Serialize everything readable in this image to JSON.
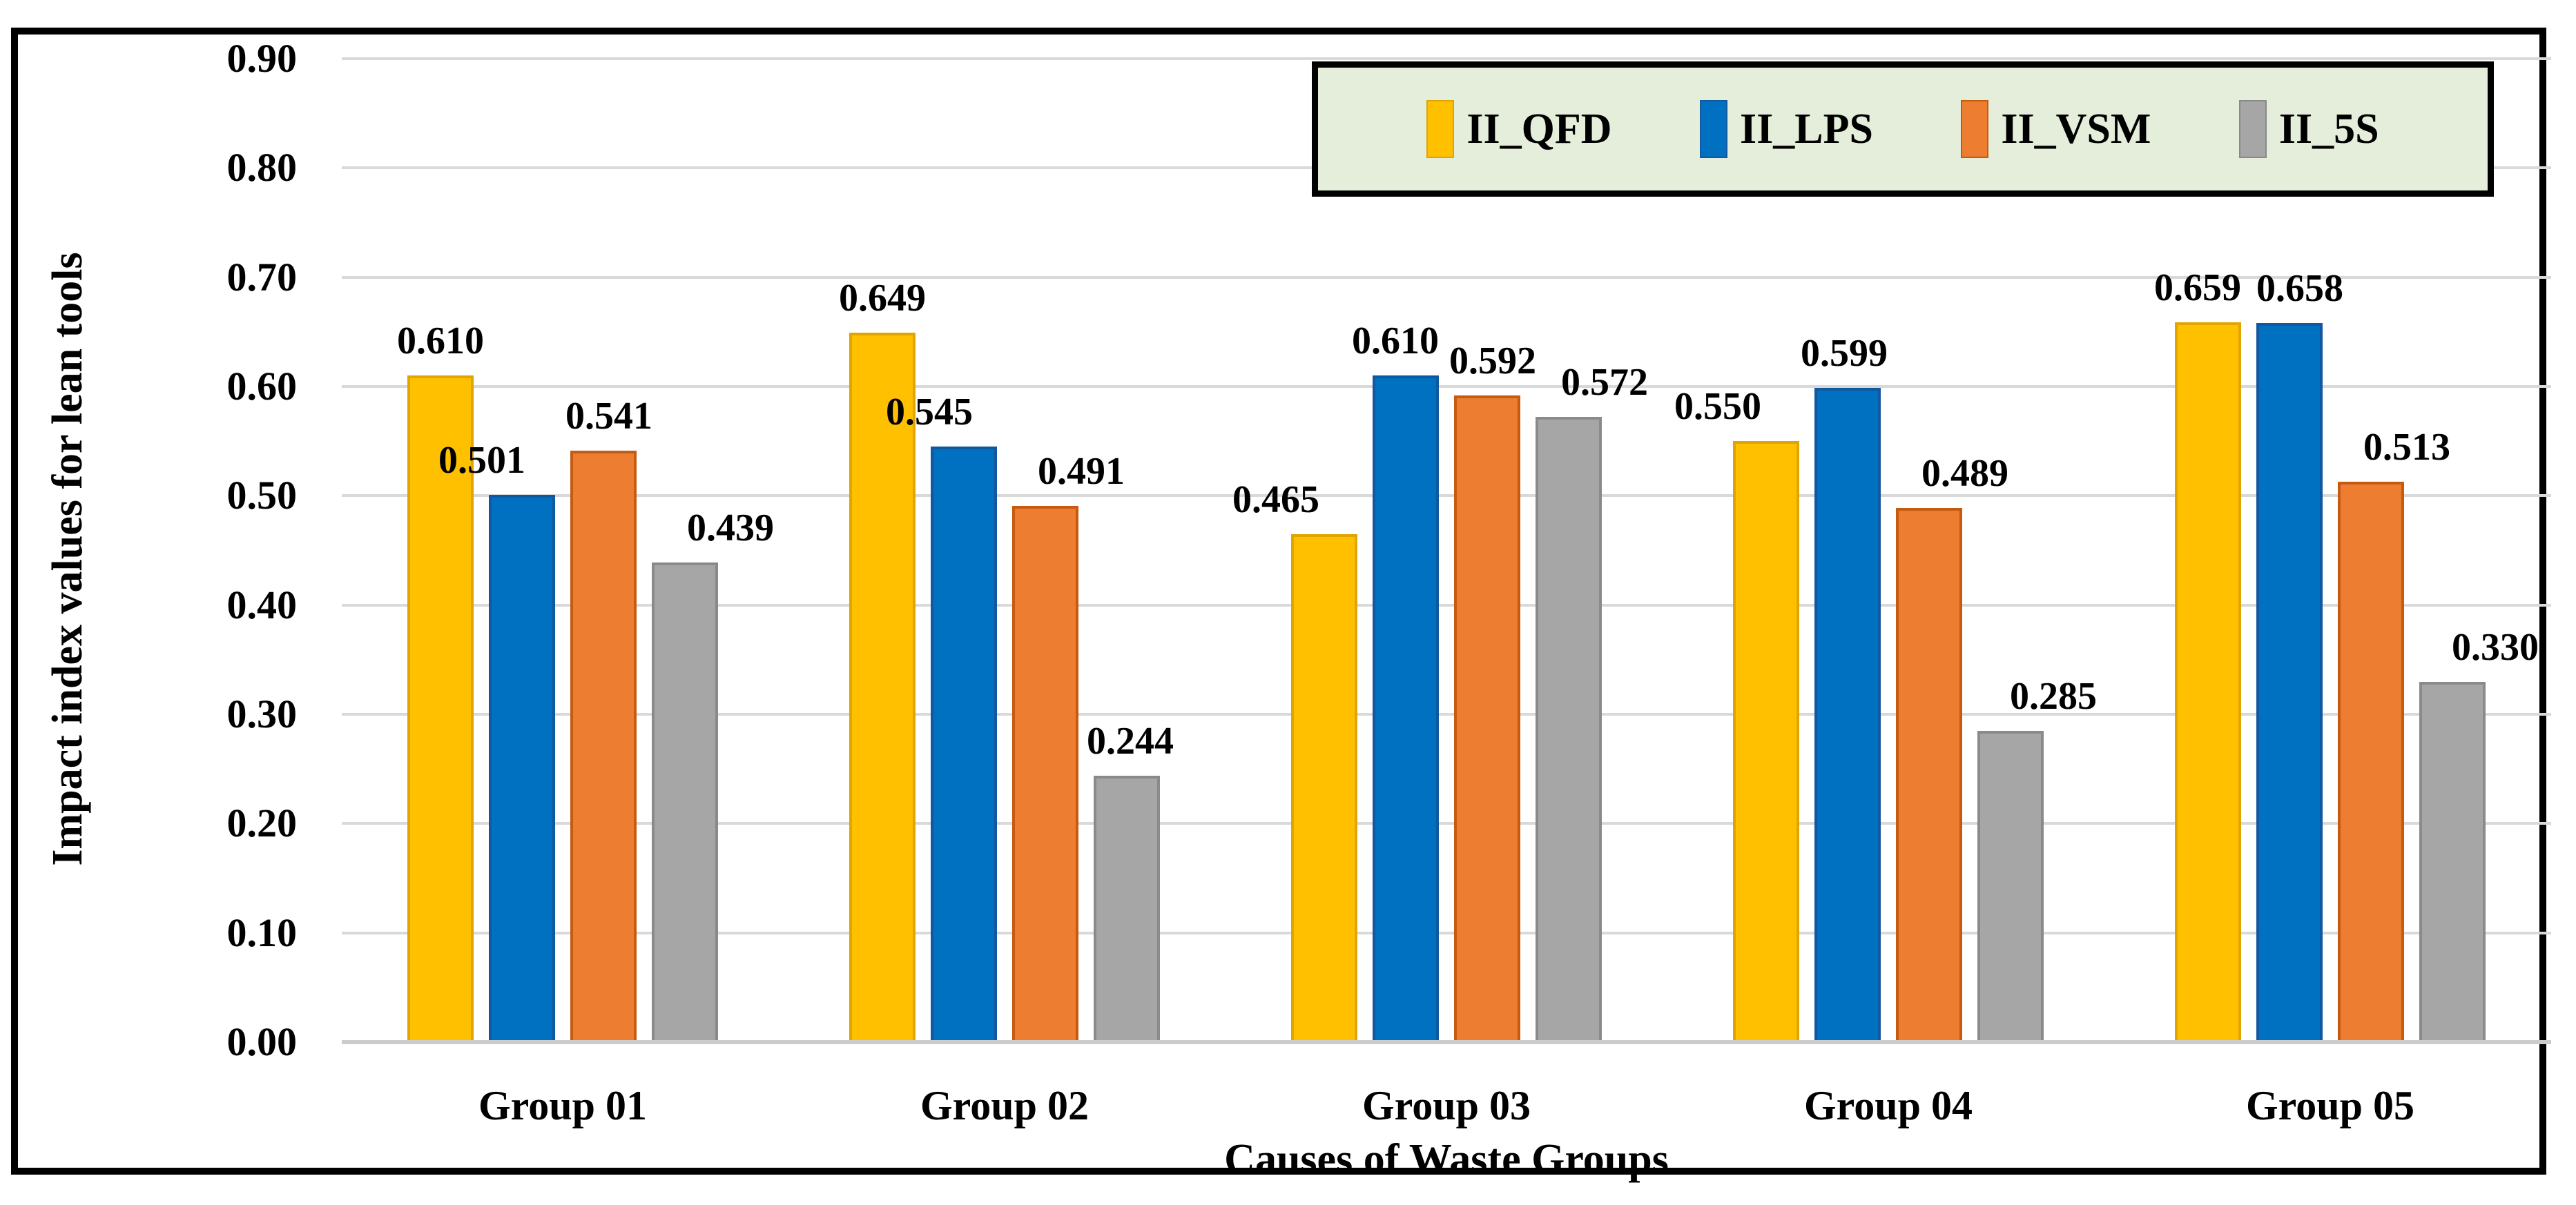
{
  "chart_data": {
    "type": "bar",
    "title": "",
    "xlabel": "Causes of Waste Groups",
    "ylabel": "Impact index values for lean tools",
    "categories": [
      "Group 01",
      "Group 02",
      "Group 03",
      "Group 04",
      "Group 05"
    ],
    "series": [
      {
        "name": "II_QFD",
        "color": "#FFC000",
        "border_color": "#E0A500",
        "values": [
          0.61,
          0.649,
          0.465,
          0.55,
          0.659
        ],
        "labels": [
          "0.610",
          "0.649",
          "0.465",
          "0.550",
          "0.659"
        ],
        "label_dx": [
          0,
          0,
          -70,
          -70,
          -15
        ]
      },
      {
        "name": "II_LPS",
        "color": "#0070C0",
        "border_color": "#1258A0",
        "values": [
          0.501,
          0.545,
          0.61,
          0.599,
          0.658
        ],
        "labels": [
          "0.501",
          "0.545",
          "0.610",
          "0.599",
          "0.658"
        ],
        "label_dx": [
          -58,
          -50,
          -15,
          -5,
          15
        ]
      },
      {
        "name": "II_VSM",
        "color": "#ED7D31",
        "border_color": "#C55A11",
        "values": [
          0.541,
          0.491,
          0.592,
          0.489,
          0.513
        ],
        "labels": [
          "0.541",
          "0.491",
          "0.592",
          "0.489",
          "0.513"
        ],
        "label_dx": [
          8,
          52,
          8,
          52,
          52
        ]
      },
      {
        "name": "II_5S",
        "color": "#A6A6A6",
        "border_color": "#8A8A8A",
        "values": [
          0.439,
          0.244,
          0.572,
          0.285,
          0.33
        ],
        "labels": [
          "0.439",
          "0.244",
          "0.572",
          "0.285",
          "0.330"
        ],
        "label_dx": [
          66,
          5,
          52,
          62,
          62
        ]
      }
    ],
    "ylim": [
      0,
      0.9
    ],
    "yticks": [
      "0.90",
      "0.80",
      "0.70",
      "0.60",
      "0.50",
      "0.40",
      "0.30",
      "0.20",
      "0.10",
      "0.00"
    ],
    "grid": "horizontal",
    "gridline_color": "#D9D9D9",
    "axis_line_color": "#CCCCCC",
    "value_label_format": "0.000",
    "legend": {
      "position": "top-right",
      "background": "#E4EEDA",
      "border_color": "#000000"
    }
  }
}
